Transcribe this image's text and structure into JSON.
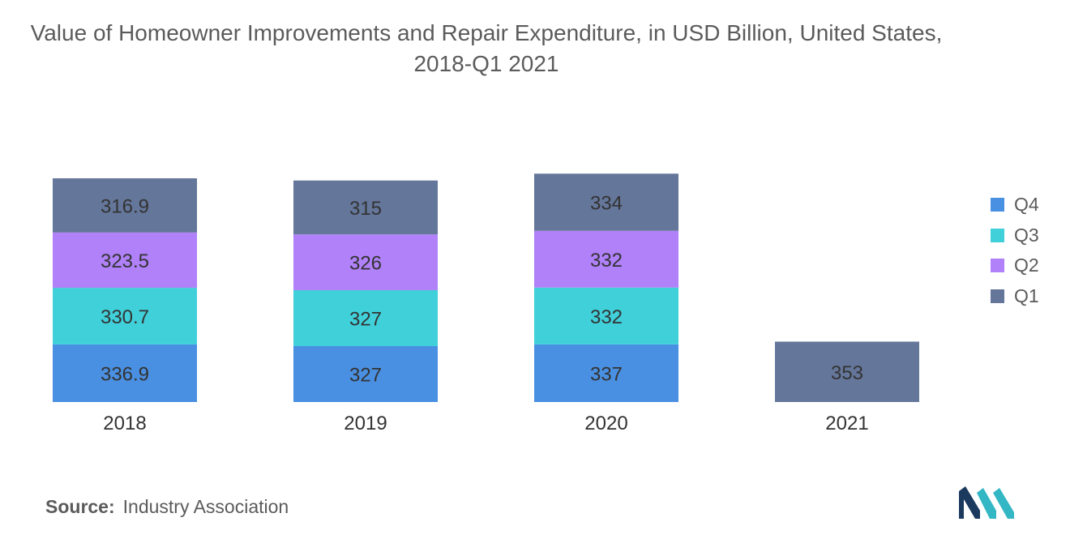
{
  "chart_data": {
    "type": "bar",
    "stacked": true,
    "title": "Value of Homeowner Improvements and Repair Expenditure, in USD Billion, United States, 2018-Q1 2021",
    "categories": [
      "2018",
      "2019",
      "2020",
      "2021"
    ],
    "series": [
      {
        "name": "Q4",
        "color": "#4a90e2",
        "values": [
          336.9,
          327,
          337,
          null
        ],
        "labels": [
          "336.9",
          "327",
          "337",
          ""
        ]
      },
      {
        "name": "Q3",
        "color": "#40d0da",
        "values": [
          330.7,
          327,
          332,
          null
        ],
        "labels": [
          "330.7",
          "327",
          "332",
          ""
        ]
      },
      {
        "name": "Q2",
        "color": "#b081f8",
        "values": [
          323.5,
          326,
          332,
          null
        ],
        "labels": [
          "323.5",
          "326",
          "332",
          ""
        ]
      },
      {
        "name": "Q1",
        "color": "#64769a",
        "values": [
          316.9,
          315,
          334,
          353
        ],
        "labels": [
          "316.9",
          "315",
          "334",
          "353"
        ]
      }
    ],
    "stack_order_bottom_to_top": [
      "Q4",
      "Q3",
      "Q2",
      "Q1"
    ],
    "legend_order": [
      "Q4",
      "Q3",
      "Q2",
      "Q1"
    ],
    "legend_position": "right",
    "ylim": [
      0,
      1450
    ],
    "y_axis_visible": false,
    "grid": false
  },
  "source": {
    "key": "Source:",
    "value": "Industry Association"
  },
  "logo": {
    "icon": "mordor-intelligence-logo",
    "colors": [
      "#1c3a5e",
      "#33b7c4"
    ]
  }
}
